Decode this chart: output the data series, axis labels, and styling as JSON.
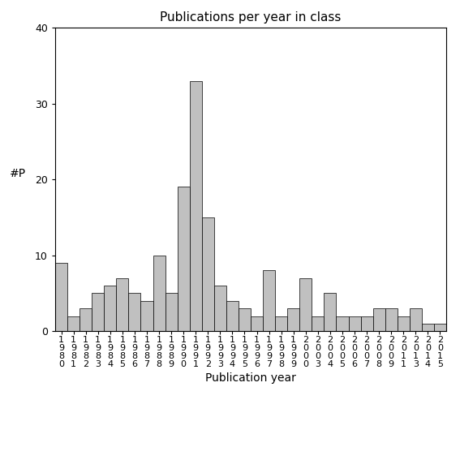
{
  "title": "Publications per year in class",
  "xlabel": "Publication year",
  "ylabel": "#P",
  "bar_color": "#c0c0c0",
  "bar_edgecolor": "#000000",
  "ylim": [
    0,
    40
  ],
  "yticks": [
    0,
    10,
    20,
    30,
    40
  ],
  "years": [
    1980,
    1981,
    1982,
    1983,
    1984,
    1985,
    1986,
    1987,
    1988,
    1989,
    1990,
    1991,
    1992,
    1993,
    1994,
    1995,
    1996,
    1997,
    1998,
    1999,
    2000,
    2003,
    2004,
    2005,
    2006,
    2007,
    2008,
    2009,
    2011,
    2013,
    2014,
    2015
  ],
  "values": [
    9,
    2,
    3,
    5,
    6,
    7,
    5,
    4,
    10,
    5,
    19,
    33,
    15,
    6,
    4,
    3,
    2,
    8,
    2,
    3,
    7,
    2,
    5,
    2,
    2,
    2,
    3,
    3,
    2,
    3,
    1,
    1
  ],
  "title_fontsize": 11,
  "xlabel_fontsize": 10,
  "ylabel_fontsize": 10,
  "tick_fontsize": 8
}
